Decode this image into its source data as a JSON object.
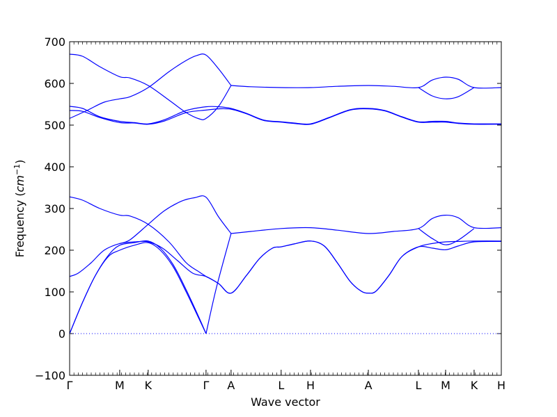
{
  "chart_data": {
    "type": "line",
    "xlabel": "Wave vector",
    "ylabel_text": "Frequency (",
    "ylabel_unit": "cm",
    "ylabel_exp": "−1",
    "ylabel_close": ")",
    "ylim": [
      -100,
      700
    ],
    "yticks": [
      -100,
      0,
      100,
      200,
      300,
      400,
      500,
      600,
      700
    ],
    "xlim": [
      0,
      1
    ],
    "grid": false,
    "line_color": "#0000ff",
    "zero_line_color": "#0000ff",
    "x_ticks": [
      {
        "label": "Γ",
        "x": 0.0
      },
      {
        "label": "M",
        "x": 0.116
      },
      {
        "label": "K",
        "x": 0.182
      },
      {
        "label": "Γ",
        "x": 0.316
      },
      {
        "label": "A",
        "x": 0.374
      },
      {
        "label": "L",
        "x": 0.49
      },
      {
        "label": "H",
        "x": 0.558
      },
      {
        "label": "A",
        "x": 0.692
      },
      {
        "label": "L",
        "x": 0.808
      },
      {
        "label": "M",
        "x": 0.871
      },
      {
        "label": "K",
        "x": 0.937
      },
      {
        "label": "H",
        "x": 1.0
      }
    ],
    "series": [
      {
        "values": [
          [
            0.0,
            0
          ],
          [
            0.03,
            75
          ],
          [
            0.06,
            140
          ],
          [
            0.09,
            185
          ],
          [
            0.116,
            200
          ],
          [
            0.15,
            212
          ],
          [
            0.182,
            218
          ],
          [
            0.21,
            200
          ],
          [
            0.24,
            160
          ],
          [
            0.27,
            100
          ],
          [
            0.3,
            35
          ],
          [
            0.316,
            0
          ]
        ]
      },
      {
        "values": [
          [
            0.0,
            0
          ],
          [
            0.03,
            75
          ],
          [
            0.06,
            140
          ],
          [
            0.09,
            188
          ],
          [
            0.116,
            212
          ],
          [
            0.15,
            218
          ],
          [
            0.182,
            222
          ],
          [
            0.21,
            205
          ],
          [
            0.24,
            165
          ],
          [
            0.27,
            105
          ],
          [
            0.3,
            38
          ],
          [
            0.316,
            0
          ]
        ]
      },
      {
        "values": [
          [
            0.0,
            137
          ],
          [
            0.02,
            145
          ],
          [
            0.05,
            170
          ],
          [
            0.08,
            200
          ],
          [
            0.116,
            216
          ],
          [
            0.15,
            220
          ],
          [
            0.182,
            220
          ],
          [
            0.215,
            205
          ],
          [
            0.25,
            175
          ],
          [
            0.285,
            145
          ],
          [
            0.316,
            137
          ],
          [
            0.345,
            120
          ],
          [
            0.374,
            97
          ],
          [
            0.41,
            140
          ],
          [
            0.44,
            180
          ],
          [
            0.47,
            205
          ],
          [
            0.49,
            208
          ],
          [
            0.52,
            215
          ],
          [
            0.558,
            222
          ],
          [
            0.59,
            210
          ],
          [
            0.62,
            170
          ],
          [
            0.65,
            125
          ],
          [
            0.675,
            102
          ],
          [
            0.692,
            97
          ],
          [
            0.71,
            102
          ],
          [
            0.74,
            140
          ],
          [
            0.77,
            185
          ],
          [
            0.808,
            208
          ],
          [
            0.84,
            216
          ],
          [
            0.871,
            220
          ],
          [
            0.9,
            221
          ],
          [
            0.937,
            222
          ],
          [
            1.0,
            222
          ]
        ]
      },
      {
        "values": [
          [
            0.316,
            137
          ],
          [
            0.345,
            120
          ],
          [
            0.374,
            97
          ],
          [
            0.41,
            140
          ],
          [
            0.44,
            180
          ],
          [
            0.47,
            205
          ],
          [
            0.49,
            208
          ],
          [
            0.52,
            215
          ],
          [
            0.558,
            222
          ],
          [
            0.59,
            210
          ],
          [
            0.62,
            170
          ],
          [
            0.65,
            125
          ],
          [
            0.675,
            102
          ],
          [
            0.692,
            97
          ],
          [
            0.71,
            102
          ],
          [
            0.74,
            140
          ],
          [
            0.77,
            185
          ],
          [
            0.808,
            208
          ],
          [
            0.84,
            205
          ],
          [
            0.871,
            201
          ],
          [
            0.9,
            210
          ],
          [
            0.937,
            220
          ],
          [
            1.0,
            221
          ]
        ]
      },
      {
        "values": [
          [
            0.0,
            328
          ],
          [
            0.03,
            320
          ],
          [
            0.07,
            300
          ],
          [
            0.116,
            284
          ],
          [
            0.14,
            282
          ],
          [
            0.182,
            262
          ],
          [
            0.23,
            220
          ],
          [
            0.27,
            170
          ],
          [
            0.3,
            148
          ],
          [
            0.316,
            137
          ]
        ]
      },
      {
        "values": [
          [
            0.116,
            216
          ],
          [
            0.14,
            225
          ],
          [
            0.182,
            262
          ],
          [
            0.22,
            295
          ],
          [
            0.26,
            318
          ],
          [
            0.29,
            326
          ],
          [
            0.316,
            327
          ],
          [
            0.345,
            280
          ],
          [
            0.374,
            240
          ]
        ]
      },
      {
        "values": [
          [
            0.316,
            0
          ],
          [
            0.34,
            110
          ],
          [
            0.374,
            240
          ]
        ]
      },
      {
        "values": [
          [
            0.374,
            240
          ],
          [
            0.42,
            245
          ],
          [
            0.49,
            252
          ],
          [
            0.558,
            254
          ],
          [
            0.62,
            248
          ],
          [
            0.692,
            240
          ],
          [
            0.75,
            245
          ],
          [
            0.808,
            252
          ],
          [
            0.84,
            276
          ],
          [
            0.871,
            284
          ],
          [
            0.9,
            278
          ],
          [
            0.937,
            254
          ],
          [
            1.0,
            254
          ]
        ]
      },
      {
        "values": [
          [
            0.808,
            252
          ],
          [
            0.84,
            228
          ],
          [
            0.871,
            213
          ],
          [
            0.9,
            224
          ],
          [
            0.937,
            252
          ]
        ]
      },
      {
        "values": [
          [
            0.0,
            670
          ],
          [
            0.03,
            665
          ],
          [
            0.07,
            640
          ],
          [
            0.116,
            616
          ],
          [
            0.14,
            613
          ],
          [
            0.182,
            595
          ],
          [
            0.23,
            560
          ],
          [
            0.27,
            530
          ],
          [
            0.3,
            515
          ],
          [
            0.316,
            516
          ],
          [
            0.345,
            545
          ],
          [
            0.374,
            595
          ]
        ]
      },
      {
        "values": [
          [
            0.0,
            516
          ],
          [
            0.04,
            535
          ],
          [
            0.08,
            555
          ],
          [
            0.116,
            563
          ],
          [
            0.14,
            568
          ],
          [
            0.182,
            590
          ],
          [
            0.23,
            628
          ],
          [
            0.27,
            655
          ],
          [
            0.295,
            667
          ],
          [
            0.316,
            668
          ],
          [
            0.345,
            635
          ],
          [
            0.374,
            595
          ]
        ]
      },
      {
        "values": [
          [
            0.374,
            595
          ],
          [
            0.42,
            592
          ],
          [
            0.49,
            590
          ],
          [
            0.558,
            590
          ],
          [
            0.62,
            593
          ],
          [
            0.692,
            595
          ],
          [
            0.75,
            593
          ],
          [
            0.808,
            590
          ],
          [
            0.84,
            608
          ],
          [
            0.871,
            615
          ],
          [
            0.9,
            610
          ],
          [
            0.937,
            590
          ],
          [
            1.0,
            590
          ]
        ]
      },
      {
        "values": [
          [
            0.808,
            590
          ],
          [
            0.84,
            570
          ],
          [
            0.871,
            563
          ],
          [
            0.9,
            568
          ],
          [
            0.937,
            590
          ]
        ]
      },
      {
        "values": [
          [
            0.0,
            545
          ],
          [
            0.03,
            540
          ],
          [
            0.07,
            520
          ],
          [
            0.116,
            509
          ],
          [
            0.15,
            506
          ],
          [
            0.182,
            503
          ],
          [
            0.22,
            513
          ],
          [
            0.27,
            535
          ],
          [
            0.316,
            544
          ],
          [
            0.345,
            544
          ],
          [
            0.374,
            540
          ],
          [
            0.41,
            528
          ],
          [
            0.45,
            512
          ],
          [
            0.49,
            508
          ],
          [
            0.52,
            505
          ],
          [
            0.558,
            503
          ],
          [
            0.6,
            518
          ],
          [
            0.65,
            537
          ],
          [
            0.692,
            540
          ],
          [
            0.73,
            535
          ],
          [
            0.77,
            520
          ],
          [
            0.808,
            508
          ],
          [
            0.84,
            509
          ],
          [
            0.871,
            509
          ],
          [
            0.9,
            505
          ],
          [
            0.937,
            503
          ],
          [
            1.0,
            503
          ]
        ]
      },
      {
        "values": [
          [
            0.0,
            535
          ],
          [
            0.03,
            533
          ],
          [
            0.07,
            518
          ],
          [
            0.116,
            506
          ],
          [
            0.15,
            505
          ],
          [
            0.182,
            502
          ],
          [
            0.22,
            510
          ],
          [
            0.27,
            530
          ],
          [
            0.316,
            536
          ],
          [
            0.345,
            539
          ],
          [
            0.374,
            538
          ],
          [
            0.41,
            527
          ],
          [
            0.45,
            511
          ],
          [
            0.49,
            507
          ],
          [
            0.52,
            504
          ],
          [
            0.558,
            502
          ],
          [
            0.6,
            517
          ],
          [
            0.65,
            536
          ],
          [
            0.692,
            539
          ],
          [
            0.73,
            534
          ],
          [
            0.77,
            519
          ],
          [
            0.808,
            507
          ],
          [
            0.84,
            507
          ],
          [
            0.871,
            507
          ],
          [
            0.9,
            504
          ],
          [
            0.937,
            502
          ],
          [
            1.0,
            502
          ]
        ]
      }
    ]
  }
}
